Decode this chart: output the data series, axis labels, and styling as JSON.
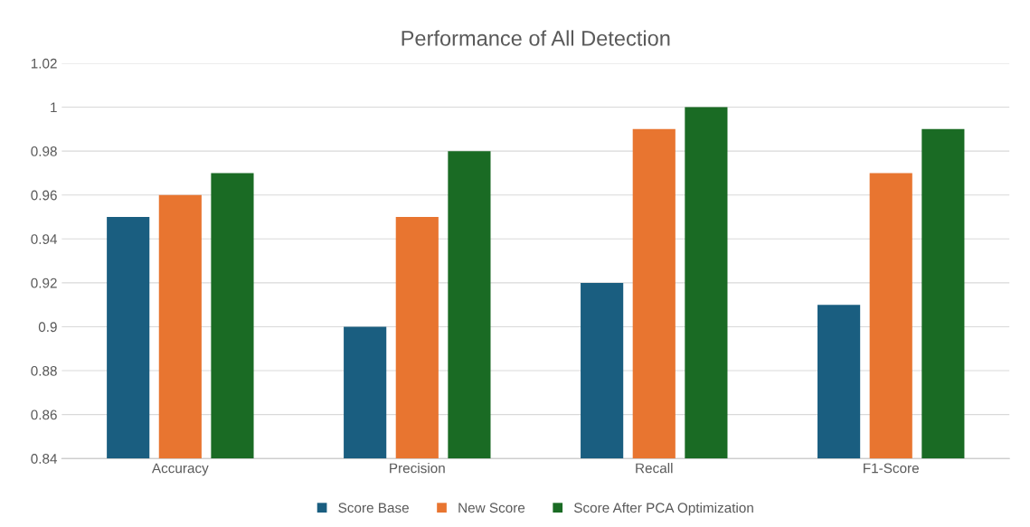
{
  "chart_data": {
    "type": "bar",
    "title": "Performance of All Detection",
    "categories": [
      "Accuracy",
      "Precision",
      "Recall",
      "F1-Score"
    ],
    "series": [
      {
        "name": "Score Base",
        "color": "#1a5e80",
        "values": [
          0.95,
          0.9,
          0.92,
          0.91
        ]
      },
      {
        "name": "New Score",
        "color": "#e87530",
        "values": [
          0.96,
          0.95,
          0.99,
          0.97
        ]
      },
      {
        "name": "Score After PCA Optimization",
        "color": "#1a6b24",
        "values": [
          0.97,
          0.98,
          1.0,
          0.99
        ]
      }
    ],
    "ylim": [
      0.84,
      1.02
    ],
    "yticks": [
      0.84,
      0.86,
      0.88,
      0.9,
      0.92,
      0.94,
      0.96,
      0.98,
      1,
      1.02
    ],
    "grid": "y",
    "legend": "bottom"
  }
}
